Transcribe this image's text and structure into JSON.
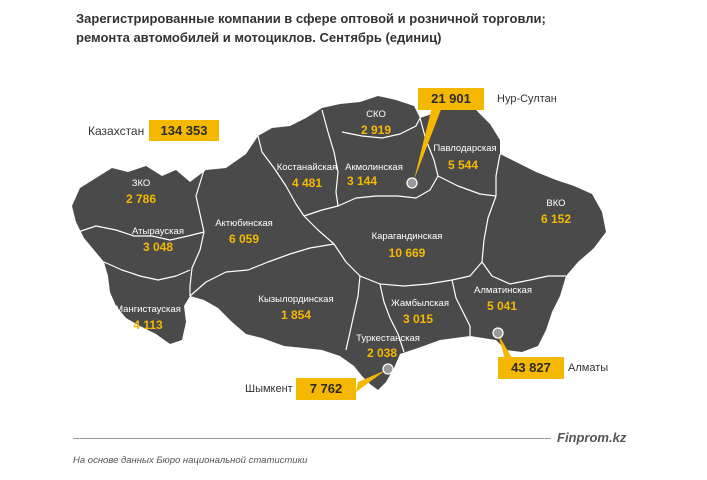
{
  "title": {
    "line1": "Зарегистрированные компании в сфере оптовой и розничной торговли;",
    "line2": "ремонта автомобилей и мотоциклов. Сентябрь (единиц)"
  },
  "country": {
    "name": "Казахстан",
    "value": "134 353"
  },
  "regions": [
    {
      "name": "ЗКО",
      "value": "2 786"
    },
    {
      "name": "Атырауская",
      "value": "3 048"
    },
    {
      "name": "Мангистауская",
      "value": "4 113"
    },
    {
      "name": "Актюбинская",
      "value": "6 059"
    },
    {
      "name": "Костанайская",
      "value": "4 481"
    },
    {
      "name": "СКО",
      "value": "2 919"
    },
    {
      "name": "Акмолинская",
      "value": "3 144"
    },
    {
      "name": "Павлодарская",
      "value": "5 544"
    },
    {
      "name": "ВКО",
      "value": "6 152"
    },
    {
      "name": "Карагандинская",
      "value": "10 669"
    },
    {
      "name": "Кызылординская",
      "value": "1 854"
    },
    {
      "name": "Жамбылская",
      "value": "3 015"
    },
    {
      "name": "Алматинская",
      "value": "5 041"
    },
    {
      "name": "Туркестанская",
      "value": "2 038"
    }
  ],
  "cities": [
    {
      "name": "Нур-Султан",
      "value": "21 901"
    },
    {
      "name": "Алматы",
      "value": "43 827"
    },
    {
      "name": "Шымкент",
      "value": "7 762"
    }
  ],
  "colors": {
    "map_fill": "#4a4a4a",
    "border": "#ffffff",
    "accent": "#f5b800"
  },
  "footer": {
    "brand": "Finprom.kz",
    "source": "На основе данных Бюро национальной статистики"
  }
}
